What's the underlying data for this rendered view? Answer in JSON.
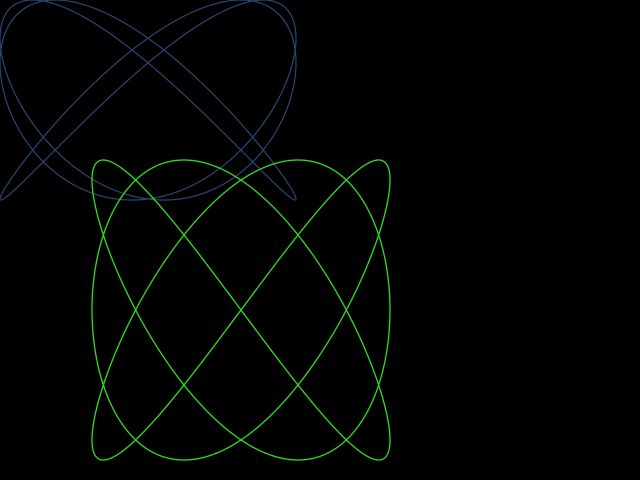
{
  "scene": {
    "background": "#000000",
    "curves": [
      {
        "name": "lissajous-curve-back",
        "shape": "lissajous",
        "freq_x": 3,
        "freq_y": 4,
        "phase": 0.5,
        "color": "#2f4a78",
        "opacity": 0.95
      },
      {
        "name": "lissajous-curve-front",
        "shape": "lissajous",
        "freq_x": 3,
        "freq_y": 4,
        "phase": 1.5707963,
        "color": "#33dd22",
        "opacity": 1
      }
    ]
  }
}
